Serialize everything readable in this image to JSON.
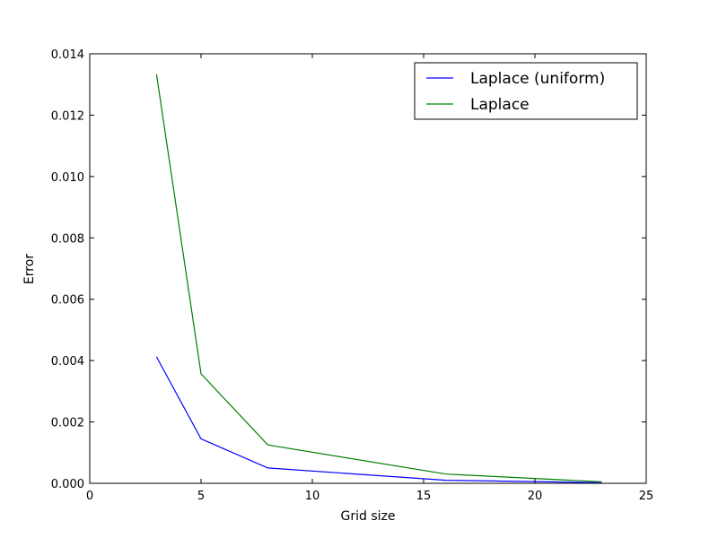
{
  "chart_data": {
    "type": "line",
    "title": "",
    "xlabel": "Grid size",
    "ylabel": "Error",
    "xlim": [
      0,
      25
    ],
    "ylim": [
      0,
      0.014
    ],
    "xticks": [
      0,
      5,
      10,
      15,
      20,
      25
    ],
    "yticks": [
      0.0,
      0.002,
      0.004,
      0.006,
      0.008,
      0.01,
      0.012,
      0.014
    ],
    "xtick_labels": [
      "0",
      "5",
      "10",
      "15",
      "20",
      "25"
    ],
    "ytick_labels": [
      "0.000",
      "0.002",
      "0.004",
      "0.006",
      "0.008",
      "0.010",
      "0.012",
      "0.014"
    ],
    "grid": false,
    "legend_position": "top-right",
    "series": [
      {
        "name": "Laplace (uniform)",
        "color": "#0000ff",
        "x": [
          3,
          5,
          8,
          16,
          23
        ],
        "y": [
          0.00412,
          0.00145,
          0.0005,
          0.0001,
          2e-05
        ]
      },
      {
        "name": "Laplace",
        "color": "#008000",
        "x": [
          3,
          5,
          8,
          16,
          23
        ],
        "y": [
          0.01333,
          0.00357,
          0.00125,
          0.0003,
          5e-05
        ]
      }
    ]
  }
}
